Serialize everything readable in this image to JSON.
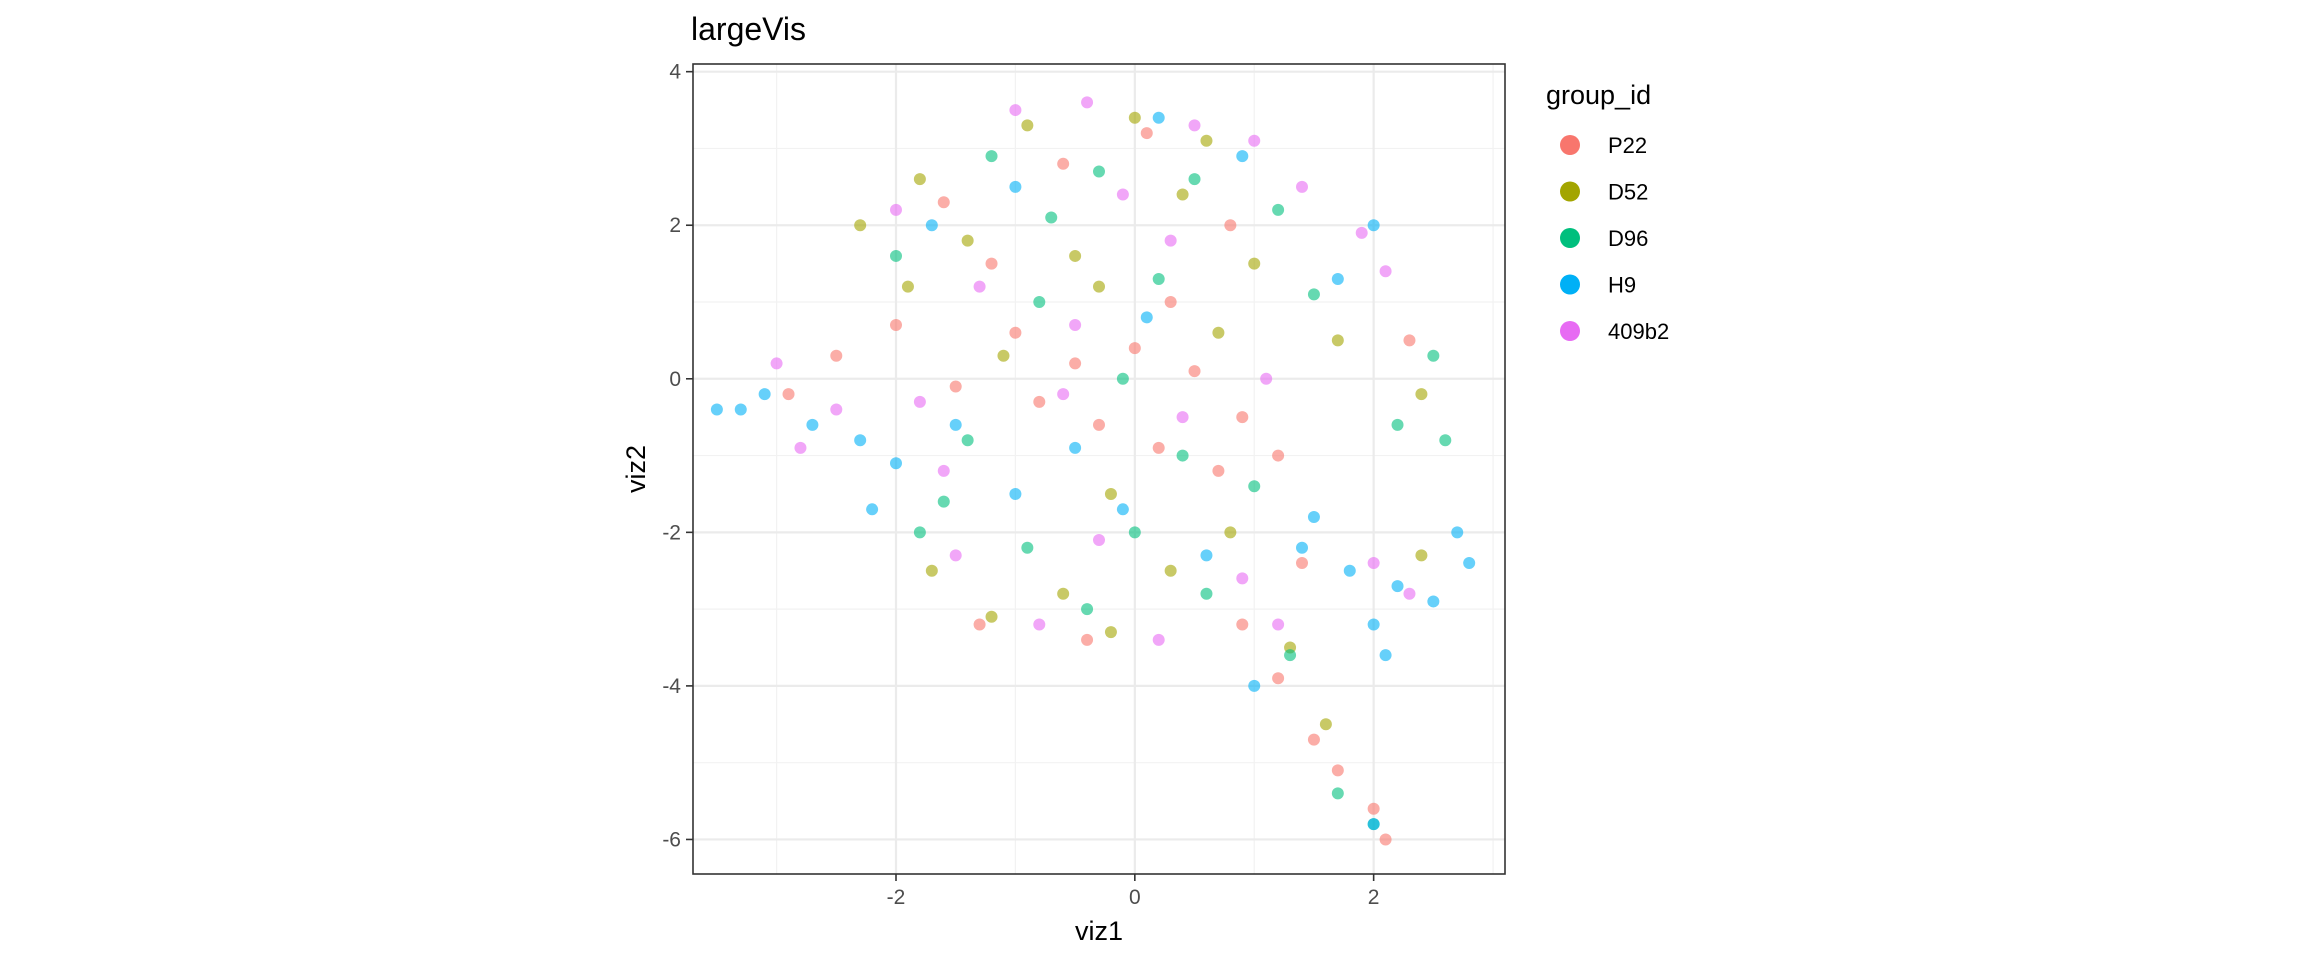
{
  "chart_data": {
    "type": "scatter",
    "title": "largeVis",
    "xlabel": "viz1",
    "ylabel": "viz2",
    "xlim": [
      -3.7,
      3.1
    ],
    "ylim": [
      -6.45,
      4.1
    ],
    "xticks": [
      -2,
      0,
      2
    ],
    "yticks": [
      -6,
      -4,
      -2,
      0,
      2,
      4
    ],
    "grid": true,
    "legend": {
      "title": "group_id",
      "position": "right"
    },
    "series": [
      {
        "name": "P22",
        "color": "#F8766D",
        "points": [
          [
            -1.0,
            0.6
          ],
          [
            -0.5,
            0.2
          ],
          [
            0.0,
            0.4
          ],
          [
            0.5,
            0.1
          ],
          [
            0.9,
            -0.5
          ],
          [
            -0.3,
            -0.6
          ],
          [
            0.2,
            -0.9
          ],
          [
            -2.0,
            0.7
          ],
          [
            -2.5,
            0.3
          ],
          [
            -2.9,
            -0.2
          ],
          [
            -1.5,
            -0.1
          ],
          [
            0.7,
            -1.2
          ],
          [
            1.2,
            -1.0
          ],
          [
            -0.8,
            -0.3
          ],
          [
            0.3,
            1.0
          ],
          [
            -1.2,
            1.5
          ],
          [
            0.8,
            2.0
          ],
          [
            1.4,
            -2.4
          ],
          [
            0.9,
            -3.2
          ],
          [
            1.2,
            -3.9
          ],
          [
            1.5,
            -4.7
          ],
          [
            1.7,
            -5.1
          ],
          [
            2.0,
            -5.6
          ],
          [
            2.1,
            -6.0
          ],
          [
            -1.3,
            -3.2
          ],
          [
            -0.4,
            -3.4
          ],
          [
            2.3,
            0.5
          ],
          [
            -0.6,
            2.8
          ],
          [
            0.1,
            3.2
          ],
          [
            -1.6,
            2.3
          ]
        ]
      },
      {
        "name": "D52",
        "color": "#A3A500",
        "points": [
          [
            -0.9,
            3.3
          ],
          [
            0.0,
            3.4
          ],
          [
            0.6,
            3.1
          ],
          [
            -1.8,
            2.6
          ],
          [
            -2.3,
            2.0
          ],
          [
            -1.4,
            1.8
          ],
          [
            -0.5,
            1.6
          ],
          [
            0.4,
            2.4
          ],
          [
            1.0,
            1.5
          ],
          [
            1.7,
            0.5
          ],
          [
            -1.7,
            -2.5
          ],
          [
            -0.6,
            -2.8
          ],
          [
            0.3,
            -2.5
          ],
          [
            -1.2,
            -3.1
          ],
          [
            -0.2,
            -3.3
          ],
          [
            0.8,
            -2.0
          ],
          [
            2.4,
            -0.2
          ],
          [
            -0.3,
            1.2
          ],
          [
            0.7,
            0.6
          ],
          [
            -1.1,
            0.3
          ],
          [
            -0.2,
            -1.5
          ],
          [
            1.6,
            -4.5
          ],
          [
            1.3,
            -3.5
          ],
          [
            2.4,
            -2.3
          ],
          [
            -1.9,
            1.2
          ]
        ]
      },
      {
        "name": "D96",
        "color": "#00BF7D",
        "points": [
          [
            -1.2,
            2.9
          ],
          [
            -0.3,
            2.7
          ],
          [
            0.5,
            2.6
          ],
          [
            1.2,
            2.2
          ],
          [
            -2.0,
            1.6
          ],
          [
            -0.8,
            1.0
          ],
          [
            0.2,
            1.3
          ],
          [
            1.5,
            1.1
          ],
          [
            2.5,
            0.3
          ],
          [
            -1.6,
            -1.6
          ],
          [
            -0.9,
            -2.2
          ],
          [
            0.0,
            -2.0
          ],
          [
            0.6,
            -2.8
          ],
          [
            -0.4,
            -3.0
          ],
          [
            1.0,
            -1.4
          ],
          [
            2.2,
            -0.6
          ],
          [
            -0.1,
            0.0
          ],
          [
            -1.4,
            -0.8
          ],
          [
            1.7,
            -5.4
          ],
          [
            2.0,
            -5.8
          ],
          [
            1.3,
            -3.6
          ],
          [
            0.4,
            -1.0
          ],
          [
            -1.8,
            -2.0
          ],
          [
            2.6,
            -0.8
          ],
          [
            -0.7,
            2.1
          ]
        ]
      },
      {
        "name": "H9",
        "color": "#00B0F6",
        "points": [
          [
            -3.5,
            -0.4
          ],
          [
            -3.1,
            -0.2
          ],
          [
            -2.7,
            -0.6
          ],
          [
            -2.3,
            -0.8
          ],
          [
            -2.0,
            -1.1
          ],
          [
            -2.2,
            -1.7
          ],
          [
            -1.5,
            -0.6
          ],
          [
            -1.0,
            -1.5
          ],
          [
            -0.1,
            -1.7
          ],
          [
            0.6,
            -2.3
          ],
          [
            1.4,
            -2.2
          ],
          [
            1.8,
            -2.5
          ],
          [
            2.2,
            -2.7
          ],
          [
            2.5,
            -2.9
          ],
          [
            2.8,
            -2.4
          ],
          [
            2.0,
            -3.2
          ],
          [
            2.1,
            -3.6
          ],
          [
            1.0,
            -4.0
          ],
          [
            2.0,
            -5.8
          ],
          [
            -1.0,
            2.5
          ],
          [
            0.2,
            3.4
          ],
          [
            0.9,
            2.9
          ],
          [
            1.7,
            1.3
          ],
          [
            2.0,
            2.0
          ],
          [
            -1.7,
            2.0
          ],
          [
            0.1,
            0.8
          ],
          [
            -0.5,
            -0.9
          ],
          [
            1.5,
            -1.8
          ],
          [
            2.7,
            -2.0
          ],
          [
            -3.3,
            -0.4
          ]
        ]
      },
      {
        "name": "409b2",
        "color": "#E76BF3",
        "points": [
          [
            -1.0,
            3.5
          ],
          [
            -0.4,
            3.6
          ],
          [
            0.5,
            3.3
          ],
          [
            1.0,
            3.1
          ],
          [
            1.9,
            1.9
          ],
          [
            2.1,
            1.4
          ],
          [
            -2.0,
            2.2
          ],
          [
            -1.3,
            1.2
          ],
          [
            0.3,
            1.8
          ],
          [
            -0.5,
            0.7
          ],
          [
            -3.0,
            0.2
          ],
          [
            -2.5,
            -0.4
          ],
          [
            -1.8,
            -0.3
          ],
          [
            -0.6,
            -0.2
          ],
          [
            0.4,
            -0.5
          ],
          [
            1.1,
            0.0
          ],
          [
            -1.5,
            -2.3
          ],
          [
            -0.3,
            -2.1
          ],
          [
            0.9,
            -2.6
          ],
          [
            2.0,
            -2.4
          ],
          [
            2.3,
            -2.8
          ],
          [
            -0.8,
            -3.2
          ],
          [
            0.2,
            -3.4
          ],
          [
            1.2,
            -3.2
          ],
          [
            -2.8,
            -0.9
          ],
          [
            -0.1,
            2.4
          ],
          [
            1.4,
            2.5
          ],
          [
            -1.6,
            -1.2
          ]
        ]
      }
    ]
  }
}
